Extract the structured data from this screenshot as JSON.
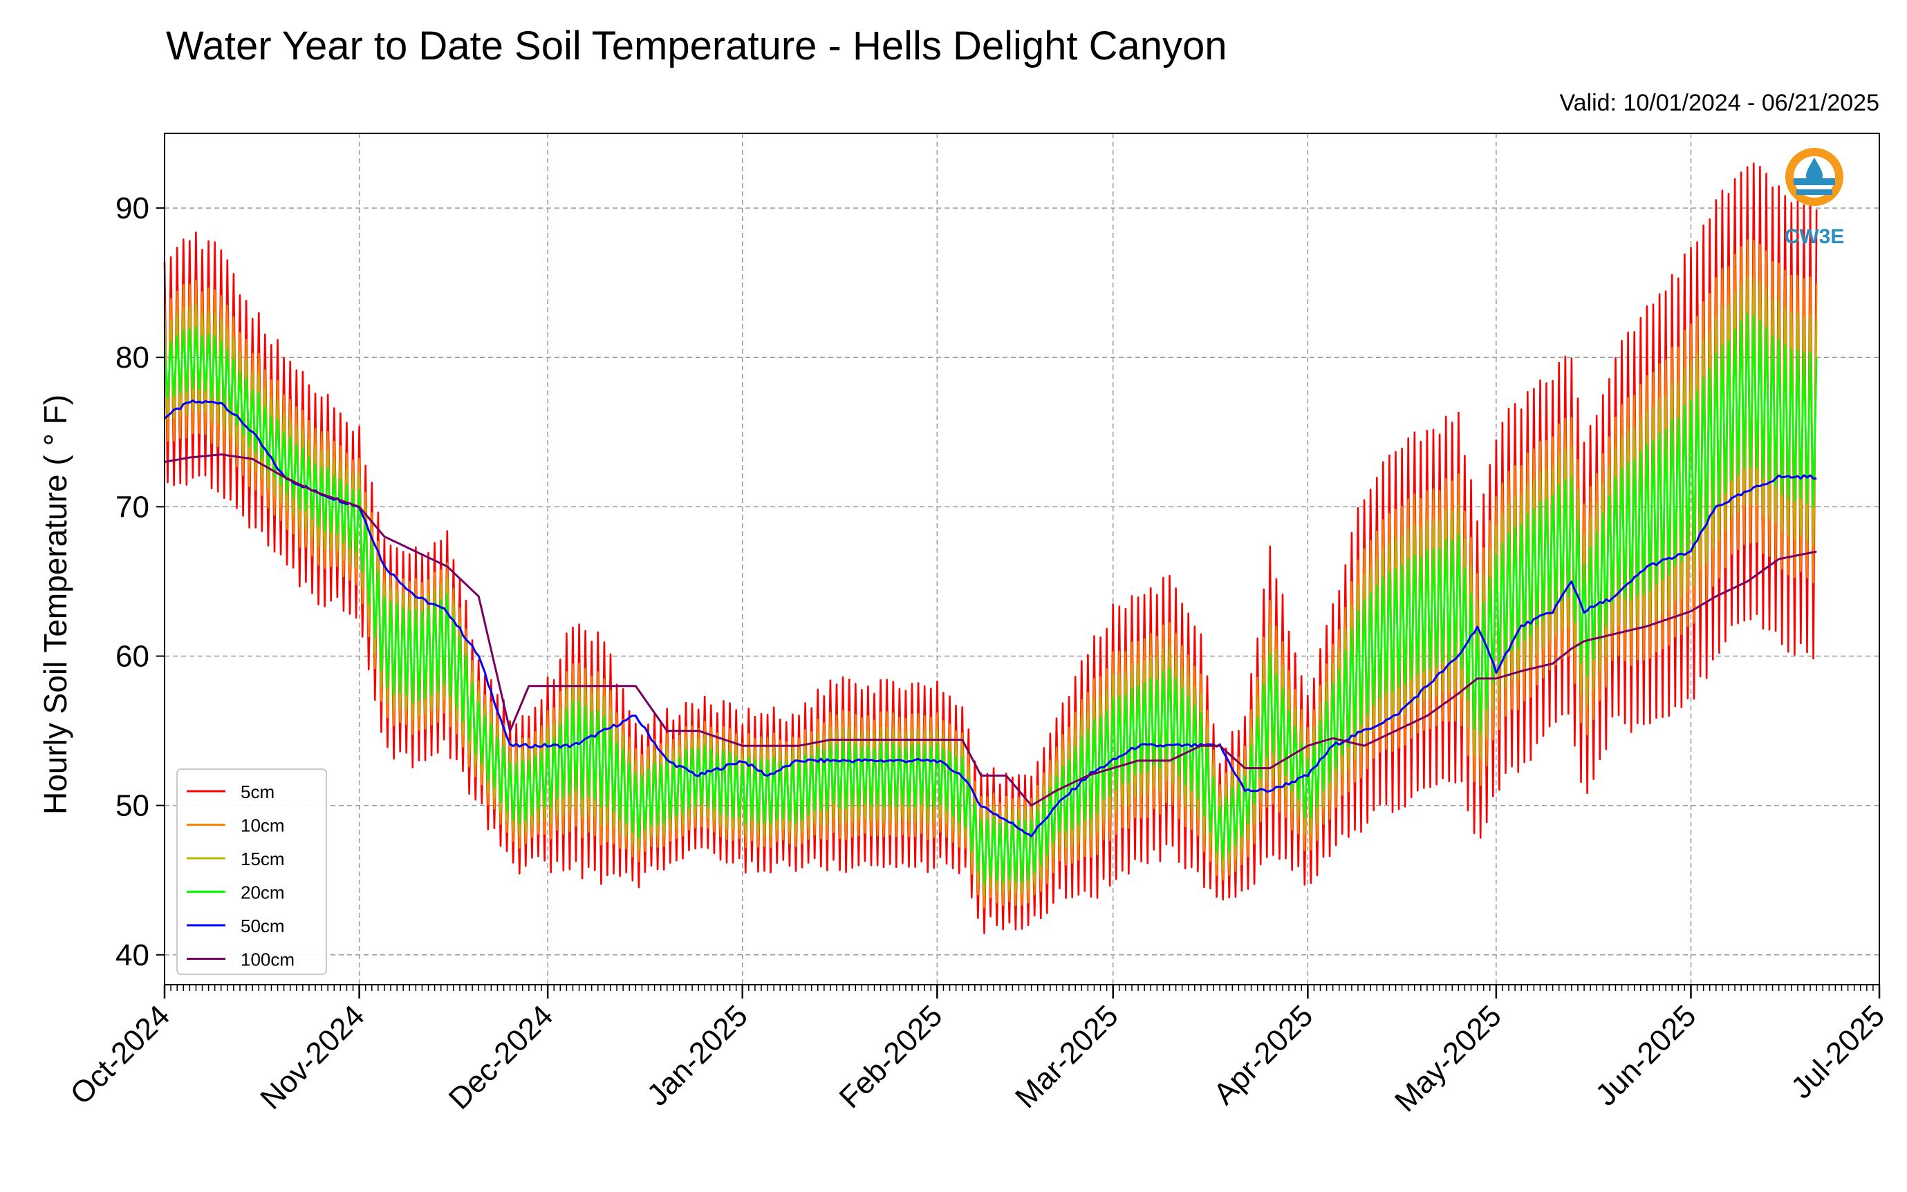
{
  "chart_data": {
    "type": "line",
    "title": "Water Year to Date Soil Temperature - Hells Delight Canyon",
    "subtitle": "Valid: 10/01/2024 - 06/21/2025",
    "xlabel": "",
    "ylabel": "Hourly Soil Temperature ( ° F)",
    "xlim": [
      "2024-10-01",
      "2025-07-01"
    ],
    "ylim": [
      38,
      95
    ],
    "y_ticks": [
      40,
      50,
      60,
      70,
      80,
      90
    ],
    "x_ticks": [
      "Oct-2024",
      "Nov-2024",
      "Dec-2024",
      "Jan-2025",
      "Feb-2025",
      "Mar-2025",
      "Apr-2025",
      "May-2025",
      "Jun-2025",
      "Jul-2025"
    ],
    "x_tick_dates": [
      "2024-10-01",
      "2024-11-01",
      "2024-12-01",
      "2025-01-01",
      "2025-02-01",
      "2025-03-01",
      "2025-04-01",
      "2025-05-01",
      "2025-06-01",
      "2025-07-01"
    ],
    "grid": true,
    "legend_position": "lower-left",
    "series_note_daily": "values are approximate daily means and diurnal amplitudes read from the chart",
    "series": [
      {
        "name": "5cm",
        "color": "#ff0000",
        "key": "s5"
      },
      {
        "name": "10cm",
        "color": "#ff8000",
        "key": "s10"
      },
      {
        "name": "15cm",
        "color": "#b8b800",
        "key": "s15"
      },
      {
        "name": "20cm",
        "color": "#00ff00",
        "key": "s20"
      },
      {
        "name": "50cm",
        "color": "#0000ff",
        "key": "s50"
      },
      {
        "name": "100cm",
        "color": "#7a0060",
        "key": "s100"
      }
    ],
    "mean_profile": {
      "dates": [
        "2024-10-01",
        "2024-10-05",
        "2024-10-10",
        "2024-10-15",
        "2024-10-20",
        "2024-10-25",
        "2024-11-01",
        "2024-11-05",
        "2024-11-10",
        "2024-11-15",
        "2024-11-20",
        "2024-11-25",
        "2024-11-28",
        "2024-12-01",
        "2024-12-05",
        "2024-12-10",
        "2024-12-15",
        "2024-12-20",
        "2024-12-25",
        "2025-01-01",
        "2025-01-05",
        "2025-01-10",
        "2025-01-15",
        "2025-01-20",
        "2025-01-25",
        "2025-02-01",
        "2025-02-05",
        "2025-02-08",
        "2025-02-12",
        "2025-02-16",
        "2025-02-20",
        "2025-02-25",
        "2025-03-01",
        "2025-03-05",
        "2025-03-10",
        "2025-03-15",
        "2025-03-18",
        "2025-03-22",
        "2025-03-26",
        "2025-04-01",
        "2025-04-05",
        "2025-04-10",
        "2025-04-15",
        "2025-04-20",
        "2025-04-25",
        "2025-04-28",
        "2025-05-01",
        "2025-05-05",
        "2025-05-10",
        "2025-05-13",
        "2025-05-15",
        "2025-05-20",
        "2025-05-25",
        "2025-06-01",
        "2025-06-05",
        "2025-06-10",
        "2025-06-15",
        "2025-06-21"
      ],
      "s20_mean": [
        79,
        80,
        79,
        76,
        73,
        71,
        69,
        61,
        60,
        61,
        55,
        51,
        51,
        52,
        54,
        53,
        50,
        51,
        52,
        51,
        51,
        51,
        52,
        52,
        52,
        52,
        51,
        47,
        47,
        47,
        50,
        52,
        54,
        55,
        56,
        53,
        48,
        50,
        57,
        51,
        55,
        60,
        62,
        63,
        64,
        58,
        63,
        65,
        67,
        68,
        62,
        68,
        69,
        72,
        75,
        78,
        76,
        75
      ],
      "s20_amp": [
        2,
        2,
        2,
        2,
        2,
        2,
        2,
        3,
        3,
        3,
        2,
        2,
        2,
        2,
        3,
        3,
        2,
        2,
        2,
        2,
        2,
        2,
        2,
        2,
        2,
        2,
        2,
        2,
        2,
        2,
        2,
        3,
        3,
        3,
        3,
        3,
        2,
        2,
        3,
        2,
        3,
        4,
        4,
        4,
        4,
        4,
        4,
        4,
        4,
        4,
        4,
        4,
        5,
        5,
        5,
        5,
        5,
        5
      ],
      "s5_extra": [
        6,
        6,
        6,
        5,
        5,
        5,
        4,
        4,
        4,
        4,
        3,
        3,
        3,
        4,
        5,
        5,
        3,
        3,
        3,
        3,
        3,
        3,
        4,
        4,
        4,
        4,
        3,
        3,
        3,
        3,
        4,
        5,
        6,
        6,
        6,
        5,
        3,
        4,
        7,
        4,
        5,
        7,
        8,
        8,
        8,
        7,
        8,
        8,
        8,
        8,
        8,
        8,
        9,
        10,
        10,
        10,
        10,
        10
      ],
      "s50": [
        76,
        77,
        77,
        75,
        72,
        71,
        70,
        66,
        64,
        63,
        60,
        54,
        54,
        54,
        54,
        55,
        56,
        53,
        52,
        53,
        52,
        53,
        53,
        53,
        53,
        53,
        52,
        50,
        49,
        48,
        50,
        52,
        53,
        54,
        54,
        54,
        54,
        51,
        51,
        52,
        54,
        55,
        56,
        58,
        60,
        62,
        59,
        62,
        63,
        65,
        63,
        64,
        66,
        67,
        70,
        71,
        72,
        72
      ],
      "s100": [
        73,
        73.3,
        73.5,
        73.2,
        72,
        71,
        70,
        68,
        67,
        66,
        64,
        55,
        58,
        58,
        58,
        58,
        58,
        55,
        55,
        54,
        54,
        54,
        54.4,
        54.4,
        54.4,
        54.4,
        54.4,
        52,
        52,
        50,
        51,
        52,
        52.5,
        53,
        53,
        54,
        54,
        52.5,
        52.5,
        54,
        54.5,
        54,
        55,
        56,
        57.5,
        58.5,
        58.5,
        59,
        59.5,
        60.5,
        61,
        61.5,
        62,
        63,
        64,
        65,
        66.5,
        67
      ]
    }
  },
  "logo": {
    "label": "CW3E"
  }
}
